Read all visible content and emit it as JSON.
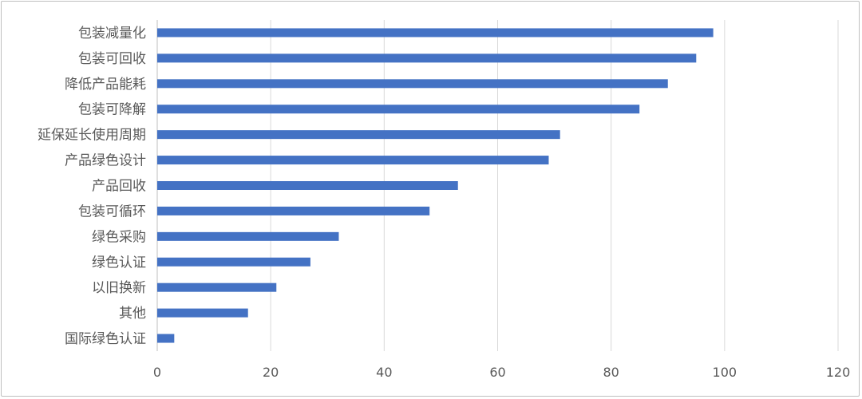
{
  "chart_data": {
    "type": "bar",
    "orientation": "horizontal",
    "categories": [
      "包装减量化",
      "包装可回收",
      "降低产品能耗",
      "包装可降解",
      "延保延长使用周期",
      "产品绿色设计",
      "产品回收",
      "包装可循环",
      "绿色采购",
      "绿色认证",
      "以旧换新",
      "其他",
      "国际绿色认证"
    ],
    "values": [
      98,
      95,
      90,
      85,
      71,
      69,
      53,
      48,
      32,
      27,
      21,
      16,
      3
    ],
    "xlim": [
      0,
      120
    ],
    "xticks": [
      "0",
      "20",
      "40",
      "60",
      "80",
      "100",
      "120"
    ],
    "title": "",
    "xlabel": "",
    "ylabel": "",
    "grid": "vertical",
    "bar_color": "#4472C4",
    "grid_color": "#d9d9d9",
    "text_color": "#595959"
  }
}
